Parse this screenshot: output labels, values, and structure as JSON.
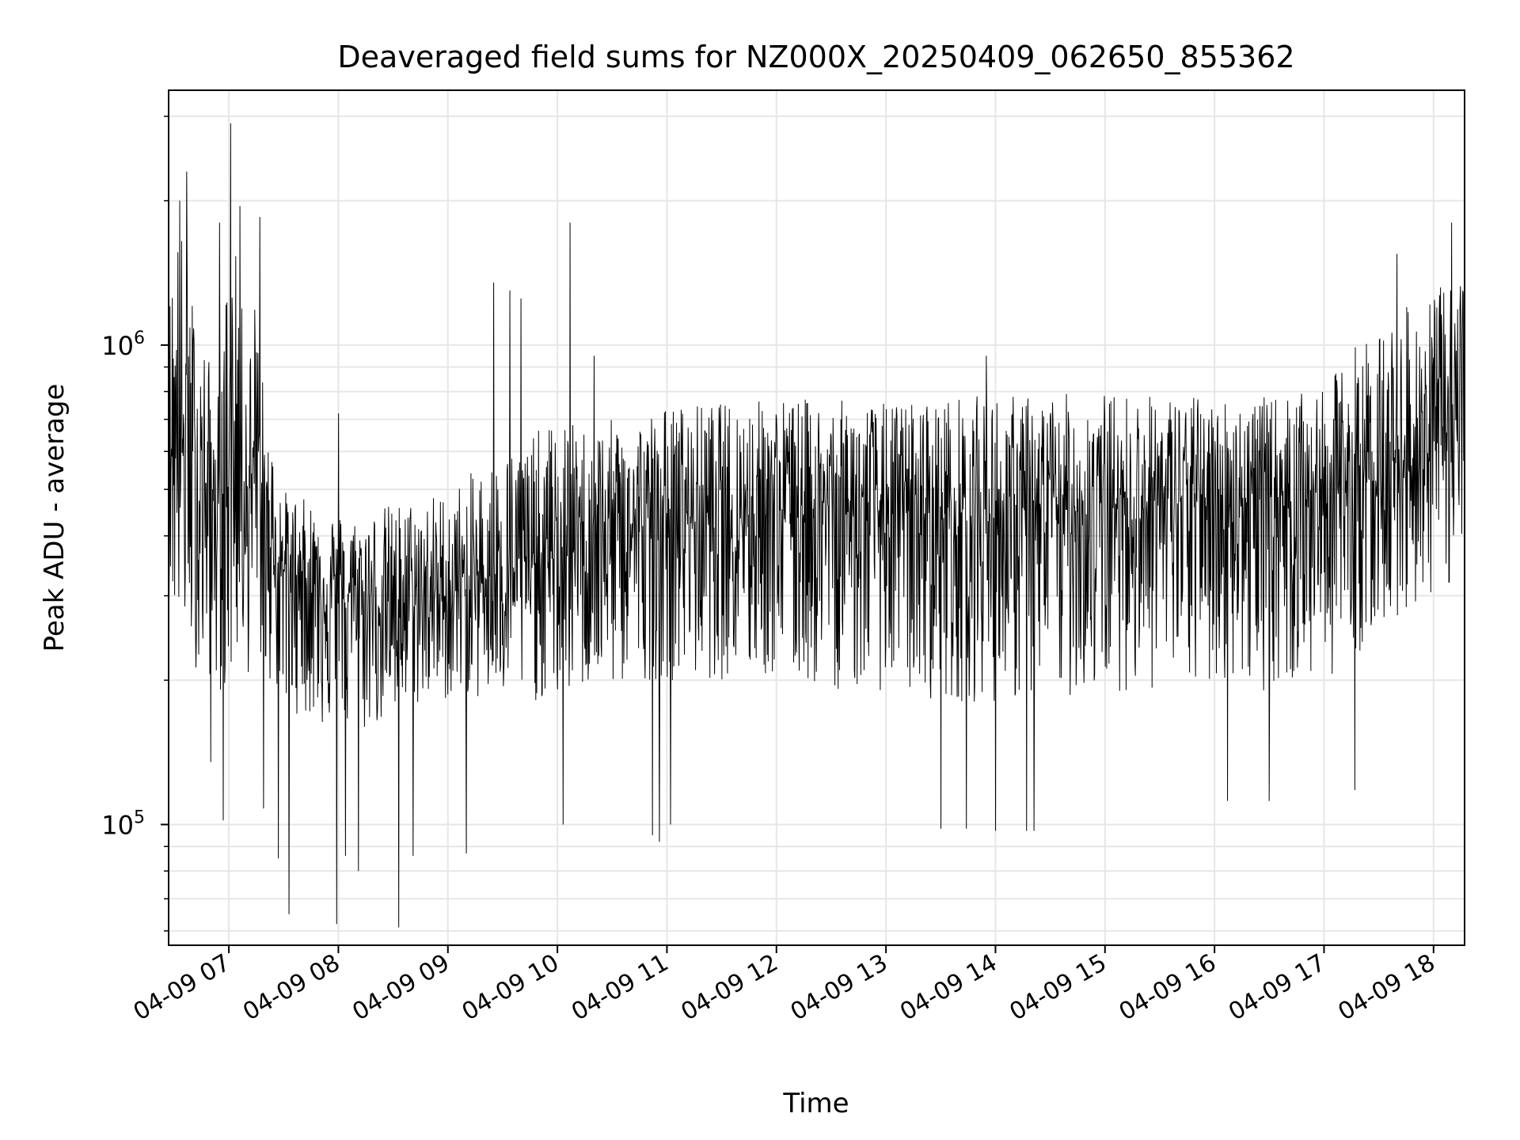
{
  "chart_data": {
    "type": "line",
    "title": "Deaveraged field sums for NZ000X_20250409_062650_855362",
    "xlabel": "Time",
    "ylabel": "Peak ADU - average",
    "y_scale": "log",
    "ylim": [
      56000,
      3400000
    ],
    "xlim": [
      "2025-04-09 06:27",
      "2025-04-09 18:17"
    ],
    "x_ticks": [
      {
        "label": "04-09 07",
        "t": "2025-04-09 07:00"
      },
      {
        "label": "04-09 08",
        "t": "2025-04-09 08:00"
      },
      {
        "label": "04-09 09",
        "t": "2025-04-09 09:00"
      },
      {
        "label": "04-09 10",
        "t": "2025-04-09 10:00"
      },
      {
        "label": "04-09 11",
        "t": "2025-04-09 11:00"
      },
      {
        "label": "04-09 12",
        "t": "2025-04-09 12:00"
      },
      {
        "label": "04-09 13",
        "t": "2025-04-09 13:00"
      },
      {
        "label": "04-09 14",
        "t": "2025-04-09 14:00"
      },
      {
        "label": "04-09 15",
        "t": "2025-04-09 15:00"
      },
      {
        "label": "04-09 16",
        "t": "2025-04-09 16:00"
      },
      {
        "label": "04-09 17",
        "t": "2025-04-09 17:00"
      },
      {
        "label": "04-09 18",
        "t": "2025-04-09 18:00"
      }
    ],
    "y_ticks": [
      {
        "base": "10",
        "exp": "5",
        "value": 100000
      },
      {
        "base": "10",
        "exp": "6",
        "value": 1000000
      }
    ],
    "grid": true,
    "line_color": "#000000",
    "grid_color": "#e6e6e6",
    "series": [
      {
        "x": [
          "2025-04-09 06:27",
          "2025-04-09 06:30",
          "2025-04-09 06:33",
          "2025-04-09 06:36",
          "2025-04-09 06:40",
          "2025-04-09 06:45",
          "2025-04-09 06:50",
          "2025-04-09 06:55",
          "2025-04-09 07:00",
          "2025-04-09 07:05",
          "2025-04-09 07:10",
          "2025-04-09 07:15",
          "2025-04-09 07:20",
          "2025-04-09 07:25",
          "2025-04-09 07:30",
          "2025-04-09 07:40",
          "2025-04-09 07:50",
          "2025-04-09 08:00",
          "2025-04-09 08:10",
          "2025-04-09 08:20",
          "2025-04-09 08:30",
          "2025-04-09 08:40",
          "2025-04-09 08:50",
          "2025-04-09 09:00",
          "2025-04-09 09:15",
          "2025-04-09 09:30",
          "2025-04-09 09:45",
          "2025-04-09 10:00",
          "2025-04-09 10:15",
          "2025-04-09 10:30",
          "2025-04-09 10:45",
          "2025-04-09 11:00",
          "2025-04-09 11:30",
          "2025-04-09 12:00",
          "2025-04-09 12:30",
          "2025-04-09 13:00",
          "2025-04-09 13:30",
          "2025-04-09 14:00",
          "2025-04-09 14:30",
          "2025-04-09 15:00",
          "2025-04-09 15:30",
          "2025-04-09 16:00",
          "2025-04-09 16:30",
          "2025-04-09 17:00",
          "2025-04-09 17:15",
          "2025-04-09 17:30",
          "2025-04-09 17:45",
          "2025-04-09 18:00",
          "2025-04-09 18:17"
        ],
        "y": [
          700000,
          650000,
          600000,
          580000,
          520000,
          500000,
          480000,
          470000,
          600000,
          700000,
          500000,
          550000,
          420000,
          380000,
          340000,
          330000,
          320000,
          310000,
          300000,
          290000,
          290000,
          290000,
          300000,
          300000,
          320000,
          340000,
          350000,
          360000,
          380000,
          400000,
          420000,
          440000,
          450000,
          470000,
          460000,
          450000,
          440000,
          440000,
          450000,
          460000,
          470000,
          480000,
          480000,
          490000,
          520000,
          540000,
          580000,
          620000,
          650000
        ]
      }
    ],
    "envelope": {
      "x": [
        "2025-04-09 06:27",
        "2025-04-09 06:30",
        "2025-04-09 06:33",
        "2025-04-09 06:36",
        "2025-04-09 06:40",
        "2025-04-09 06:45",
        "2025-04-09 06:50",
        "2025-04-09 06:55",
        "2025-04-09 07:00",
        "2025-04-09 07:05",
        "2025-04-09 07:10",
        "2025-04-09 07:15",
        "2025-04-09 07:20",
        "2025-04-09 07:25",
        "2025-04-09 07:30",
        "2025-04-09 07:40",
        "2025-04-09 07:50",
        "2025-04-09 08:00",
        "2025-04-09 08:10",
        "2025-04-09 08:20",
        "2025-04-09 08:30",
        "2025-04-09 08:40",
        "2025-04-09 08:50",
        "2025-04-09 09:00",
        "2025-04-09 09:15",
        "2025-04-09 09:30",
        "2025-04-09 09:45",
        "2025-04-09 10:00",
        "2025-04-09 10:15",
        "2025-04-09 10:30",
        "2025-04-09 10:45",
        "2025-04-09 11:00",
        "2025-04-09 11:30",
        "2025-04-09 12:00",
        "2025-04-09 12:30",
        "2025-04-09 13:00",
        "2025-04-09 13:30",
        "2025-04-09 14:00",
        "2025-04-09 14:30",
        "2025-04-09 15:00",
        "2025-04-09 15:30",
        "2025-04-09 16:00",
        "2025-04-09 16:30",
        "2025-04-09 17:00",
        "2025-04-09 17:15",
        "2025-04-09 17:30",
        "2025-04-09 17:45",
        "2025-04-09 18:00",
        "2025-04-09 18:17"
      ],
      "high": [
        1200000,
        1800000,
        1900000,
        1600000,
        1300000,
        1100000,
        900000,
        800000,
        1700000,
        1500000,
        900000,
        1400000,
        700000,
        600000,
        500000,
        480000,
        470000,
        450000,
        440000,
        460000,
        470000,
        480000,
        490000,
        500000,
        550000,
        600000,
        650000,
        700000,
        680000,
        700000,
        720000,
        750000,
        760000,
        780000,
        770000,
        760000,
        780000,
        790000,
        790000,
        800000,
        790000,
        780000,
        780000,
        800000,
        1000000,
        1100000,
        1200000,
        1300000,
        1400000
      ],
      "low": [
        300000,
        260000,
        250000,
        240000,
        220000,
        200000,
        200000,
        190000,
        180000,
        220000,
        200000,
        230000,
        200000,
        190000,
        170000,
        170000,
        160000,
        150000,
        150000,
        160000,
        160000,
        170000,
        180000,
        180000,
        180000,
        180000,
        180000,
        180000,
        190000,
        190000,
        200000,
        200000,
        200000,
        200000,
        190000,
        190000,
        180000,
        180000,
        180000,
        190000,
        190000,
        190000,
        190000,
        200000,
        220000,
        250000,
        280000,
        300000,
        320000
      ]
    },
    "spikes": [
      {
        "t": "2025-04-09 06:33",
        "y": 2000000
      },
      {
        "t": "2025-04-09 06:37",
        "y": 2300000
      },
      {
        "t": "2025-04-09 06:55",
        "y": 1800000
      },
      {
        "t": "2025-04-09 07:01",
        "y": 2900000
      },
      {
        "t": "2025-04-09 07:06",
        "y": 1950000
      },
      {
        "t": "2025-04-09 07:17",
        "y": 1850000
      },
      {
        "t": "2025-04-09 08:00",
        "y": 720000
      },
      {
        "t": "2025-04-09 09:25",
        "y": 1350000
      },
      {
        "t": "2025-04-09 09:34",
        "y": 1300000
      },
      {
        "t": "2025-04-09 09:40",
        "y": 1250000
      },
      {
        "t": "2025-04-09 10:07",
        "y": 1800000
      },
      {
        "t": "2025-04-09 10:20",
        "y": 950000
      },
      {
        "t": "2025-04-09 13:55",
        "y": 950000
      },
      {
        "t": "2025-04-09 17:40",
        "y": 1550000
      },
      {
        "t": "2025-04-09 18:10",
        "y": 1800000
      },
      {
        "t": "2025-04-09 06:50",
        "y": 135000
      },
      {
        "t": "2025-04-09 06:57",
        "y": 102000
      },
      {
        "t": "2025-04-09 07:19",
        "y": 108000
      },
      {
        "t": "2025-04-09 07:27",
        "y": 85000
      },
      {
        "t": "2025-04-09 07:33",
        "y": 65000
      },
      {
        "t": "2025-04-09 07:59",
        "y": 62000
      },
      {
        "t": "2025-04-09 08:04",
        "y": 86000
      },
      {
        "t": "2025-04-09 08:11",
        "y": 80000
      },
      {
        "t": "2025-04-09 08:33",
        "y": 61000
      },
      {
        "t": "2025-04-09 08:41",
        "y": 86000
      },
      {
        "t": "2025-04-09 09:10",
        "y": 87000
      },
      {
        "t": "2025-04-09 10:03",
        "y": 100000
      },
      {
        "t": "2025-04-09 10:52",
        "y": 95000
      },
      {
        "t": "2025-04-09 10:56",
        "y": 92000
      },
      {
        "t": "2025-04-09 11:02",
        "y": 100000
      },
      {
        "t": "2025-04-09 13:30",
        "y": 98000
      },
      {
        "t": "2025-04-09 13:44",
        "y": 98000
      },
      {
        "t": "2025-04-09 14:00",
        "y": 97000
      },
      {
        "t": "2025-04-09 14:17",
        "y": 97000
      },
      {
        "t": "2025-04-09 14:21",
        "y": 97000
      },
      {
        "t": "2025-04-09 16:07",
        "y": 112000
      },
      {
        "t": "2025-04-09 16:30",
        "y": 112000
      },
      {
        "t": "2025-04-09 17:17",
        "y": 118000
      }
    ]
  }
}
